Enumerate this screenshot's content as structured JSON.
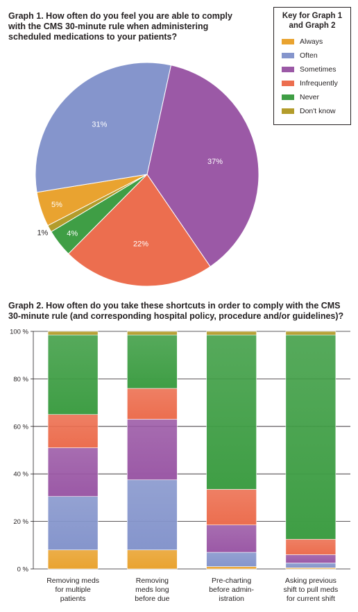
{
  "graph1": {
    "title": "Graph 1. How often do you feel you are able to comply\nwith the CMS 30-minute rule when administering\nscheduled medications to your patients?"
  },
  "graph2": {
    "title": "Graph 2. How often do you take these shortcuts in order to comply with the CMS\n30-minute rule (and corresponding hospital policy, procedure and/or guidelines)?"
  },
  "key": {
    "title": "Key for Graph 1\nand Graph 2",
    "items": [
      {
        "label": "Always",
        "color": "#e9a330"
      },
      {
        "label": "Often",
        "color": "#8595cc"
      },
      {
        "label": "Sometimes",
        "color": "#9b59a6"
      },
      {
        "label": "Infrequently",
        "color": "#ec6e4f"
      },
      {
        "label": "Never",
        "color": "#3f9e45"
      },
      {
        "label": "Don't know",
        "color": "#b39c2b"
      }
    ]
  },
  "chart_data": [
    {
      "type": "pie",
      "title": "Graph 1. How often do you feel you are able to comply with the CMS 30-minute rule when administering scheduled medications to your patients?",
      "slices": [
        {
          "label": "Sometimes",
          "value": 37,
          "display": "37%",
          "color": "#9b59a6"
        },
        {
          "label": "Infrequently",
          "value": 22,
          "display": "22%",
          "color": "#ec6e4f"
        },
        {
          "label": "Never",
          "value": 4,
          "display": "4%",
          "color": "#3f9e45"
        },
        {
          "label": "Don't know",
          "value": 1,
          "display": "1%",
          "color": "#b39c2b"
        },
        {
          "label": "Always",
          "value": 5,
          "display": "5%",
          "color": "#e9a330"
        },
        {
          "label": "Often",
          "value": 31,
          "display": "31%",
          "color": "#8595cc"
        }
      ]
    },
    {
      "type": "bar",
      "stacked": true,
      "title": "Graph 2. How often do you take these shortcuts in order to comply with the CMS 30-minute rule (and corresponding hospital policy, procedure and/or guidelines)?",
      "categories": [
        "Removing meds\nfor multiple\npatients",
        "Removing\nmeds long\nbefore due",
        "Pre-charting\nbefore admin-\nistration",
        "Asking previous\nshift to pull meds\nfor current shift"
      ],
      "series": [
        {
          "name": "Always",
          "color": "#e9a330",
          "values": [
            8,
            8,
            1,
            0.5
          ]
        },
        {
          "name": "Often",
          "color": "#8595cc",
          "values": [
            22.5,
            29.5,
            6,
            2
          ]
        },
        {
          "name": "Sometimes",
          "color": "#9b59a6",
          "values": [
            20.5,
            25.5,
            11.5,
            3.5
          ]
        },
        {
          "name": "Infrequently",
          "color": "#ec6e4f",
          "values": [
            14,
            13,
            15,
            6.5
          ]
        },
        {
          "name": "Never",
          "color": "#3f9e45",
          "values": [
            33.5,
            22.5,
            65,
            86
          ]
        },
        {
          "name": "Don't know",
          "color": "#b39c2b",
          "values": [
            1.5,
            1.5,
            1.5,
            1.5
          ]
        }
      ],
      "ylim": [
        0,
        100
      ],
      "yticks": [
        "0 %",
        "20 %",
        "40 %",
        "60 %",
        "80 %",
        "100 %"
      ],
      "grid": true
    }
  ]
}
